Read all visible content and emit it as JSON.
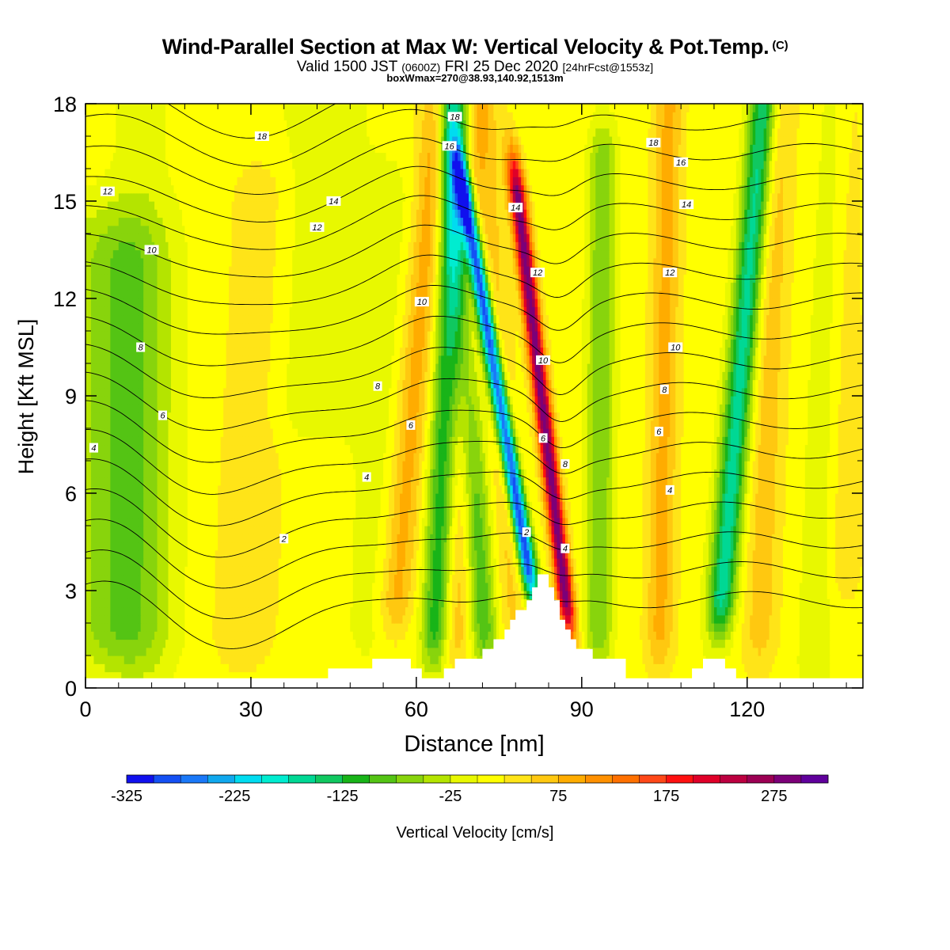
{
  "header": {
    "title": "Wind-Parallel Section at Max W: Vertical Velocity & Pot.Temp.",
    "title_mark": "(C)",
    "subtitle_a": "Valid 1500 JST",
    "subtitle_b": "(0600Z)",
    "subtitle_c": "FRI 25 Dec 2020",
    "subtitle_d": "[24hrFcst@1553z]",
    "info": "boxWmax=270@38.93,140.92,1513m"
  },
  "chart_data": {
    "type": "heatmap",
    "xlabel": "Distance [nm]",
    "ylabel": "Height [Kft MSL]",
    "xlim": [
      0,
      141
    ],
    "ylim": [
      0,
      18
    ],
    "xticks": [
      0,
      30,
      60,
      90,
      120
    ],
    "yticks": [
      0,
      3,
      6,
      9,
      12,
      15,
      18
    ],
    "colorbar": {
      "label": "Vertical Velocity [cm/s]",
      "min": -325,
      "max": 325,
      "step": 25,
      "ticks": [
        -325,
        -225,
        -125,
        -25,
        75,
        175,
        275
      ],
      "colors": [
        "#1010ee",
        "#1450f4",
        "#1a78f8",
        "#10a8ee",
        "#00dcf0",
        "#00ecd0",
        "#00d894",
        "#10c860",
        "#18b418",
        "#54c414",
        "#88d40c",
        "#b4e400",
        "#e8f800",
        "#ffff00",
        "#ffe418",
        "#ffc810",
        "#ffac00",
        "#ff9000",
        "#ff7000",
        "#ff4818",
        "#ff1010",
        "#e00028",
        "#bc0040",
        "#9c0054",
        "#7c0078",
        "#60009c"
      ]
    },
    "terrain_nm_kft": [
      [
        0,
        0.3
      ],
      [
        44,
        0.3
      ],
      [
        44,
        0.6
      ],
      [
        52,
        0.6
      ],
      [
        52,
        0.9
      ],
      [
        59,
        0.9
      ],
      [
        59,
        0.6
      ],
      [
        61,
        0.6
      ],
      [
        61,
        0.3
      ],
      [
        65,
        0.3
      ],
      [
        65,
        0.6
      ],
      [
        67,
        0.6
      ],
      [
        67,
        0.9
      ],
      [
        72,
        0.9
      ],
      [
        72,
        1.2
      ],
      [
        74,
        1.2
      ],
      [
        74,
        1.5
      ],
      [
        76,
        1.5
      ],
      [
        76,
        1.8
      ],
      [
        77,
        1.8
      ],
      [
        77,
        2.1
      ],
      [
        78,
        2.1
      ],
      [
        78,
        2.4
      ],
      [
        80,
        2.4
      ],
      [
        80,
        2.7
      ],
      [
        81,
        2.7
      ],
      [
        81,
        3.1
      ],
      [
        82,
        3.1
      ],
      [
        82,
        3.5
      ],
      [
        84,
        3.5
      ],
      [
        84,
        3.1
      ],
      [
        85,
        3.1
      ],
      [
        85,
        2.7
      ],
      [
        86,
        2.7
      ],
      [
        86,
        2.1
      ],
      [
        87,
        2.1
      ],
      [
        87,
        1.8
      ],
      [
        88,
        1.8
      ],
      [
        88,
        1.5
      ],
      [
        89,
        1.5
      ],
      [
        89,
        1.2
      ],
      [
        92,
        1.2
      ],
      [
        92,
        0.9
      ],
      [
        98,
        0.9
      ],
      [
        98,
        0.3
      ],
      [
        110,
        0.3
      ],
      [
        110,
        0.6
      ],
      [
        112,
        0.6
      ],
      [
        112,
        0.9
      ],
      [
        116,
        0.9
      ],
      [
        116,
        0.6
      ],
      [
        118,
        0.6
      ],
      [
        118,
        0.3
      ],
      [
        141,
        0.3
      ]
    ],
    "w_features": [
      {
        "x": 1.5,
        "w": 12,
        "h": [
          2,
          14
        ],
        "amp": -30,
        "tilt": 0.1
      },
      {
        "x": 10,
        "w": 6,
        "h": [
          1,
          18
        ],
        "amp": -25,
        "tilt": 0
      },
      {
        "x": 7,
        "w": 8,
        "h": [
          2,
          13
        ],
        "amp": -55,
        "tilt": 0
      },
      {
        "x": 38,
        "w": 8,
        "h": [
          9,
          18
        ],
        "amp": -35,
        "tilt": 0.3
      },
      {
        "x": 28,
        "w": 6,
        "h": [
          2,
          15
        ],
        "amp": 28,
        "tilt": 0.3
      },
      {
        "x": 52,
        "w": 6,
        "h": [
          2,
          15
        ],
        "amp": -25,
        "tilt": 0.2
      },
      {
        "x": 55,
        "w": 3,
        "h": [
          3,
          18
        ],
        "amp": 80,
        "tilt": 0.5
      },
      {
        "x": 63,
        "w": 2.5,
        "h": [
          2,
          18
        ],
        "amp": -130,
        "tilt": 0.25
      },
      {
        "x": 67,
        "w": 2.5,
        "h": [
          2,
          18
        ],
        "amp": 55,
        "tilt": 0.2
      },
      {
        "x": 73,
        "w": 2.5,
        "h": [
          2,
          18
        ],
        "amp": -110,
        "tilt": -0.4
      },
      {
        "x": 78,
        "w": 2.5,
        "h": [
          2,
          18
        ],
        "amp": 40,
        "tilt": -0.3
      },
      {
        "x": 84,
        "w": 1.5,
        "h": [
          4,
          15
        ],
        "amp": -320,
        "tilt": -1.0
      },
      {
        "x": 89,
        "w": 1.5,
        "h": [
          3,
          15
        ],
        "amp": 280,
        "tilt": -0.7
      },
      {
        "x": 93,
        "w": 2.5,
        "h": [
          2,
          16
        ],
        "amp": -90,
        "tilt": 0.05
      },
      {
        "x": 104,
        "w": 2.5,
        "h": [
          2,
          18
        ],
        "amp": 70,
        "tilt": 0.1
      },
      {
        "x": 114,
        "w": 2.5,
        "h": [
          3,
          18
        ],
        "amp": -180,
        "tilt": 0.5
      },
      {
        "x": 122,
        "w": 3,
        "h": [
          2,
          18
        ],
        "amp": 50,
        "tilt": 0.2
      },
      {
        "x": 132,
        "w": 3,
        "h": [
          1,
          18
        ],
        "amp": -40,
        "tilt": 0.2
      },
      {
        "x": 137,
        "w": 4,
        "h": [
          4,
          18
        ],
        "amp": 25,
        "tilt": 0
      }
    ],
    "theta_levels": [
      1,
      2,
      3,
      4,
      5,
      6,
      7,
      8,
      9,
      10,
      11,
      12,
      13,
      14,
      15,
      16,
      17,
      18
    ],
    "theta_labels": [
      {
        "text": "2",
        "x": 36,
        "y": 4.6
      },
      {
        "text": "4",
        "x": 1.5,
        "y": 7.4
      },
      {
        "text": "4",
        "x": 51,
        "y": 6.5
      },
      {
        "text": "6",
        "x": 14,
        "y": 8.4
      },
      {
        "text": "6",
        "x": 59,
        "y": 8.1
      },
      {
        "text": "8",
        "x": 10,
        "y": 10.5
      },
      {
        "text": "8",
        "x": 53,
        "y": 9.3
      },
      {
        "text": "10",
        "x": 12,
        "y": 13.5
      },
      {
        "text": "10",
        "x": 61,
        "y": 11.9
      },
      {
        "text": "12",
        "x": 4,
        "y": 15.3
      },
      {
        "text": "12",
        "x": 42,
        "y": 14.2
      },
      {
        "text": "14",
        "x": 45,
        "y": 15.0
      },
      {
        "text": "18",
        "x": 32,
        "y": 17.0
      },
      {
        "text": "18",
        "x": 67,
        "y": 17.6
      },
      {
        "text": "16",
        "x": 66,
        "y": 16.7
      },
      {
        "text": "14",
        "x": 78,
        "y": 14.8
      },
      {
        "text": "12",
        "x": 82,
        "y": 12.8
      },
      {
        "text": "10",
        "x": 83,
        "y": 10.1
      },
      {
        "text": "6",
        "x": 83,
        "y": 7.7
      },
      {
        "text": "2",
        "x": 80,
        "y": 4.8
      },
      {
        "text": "8",
        "x": 87,
        "y": 6.9
      },
      {
        "text": "4",
        "x": 87,
        "y": 4.3
      },
      {
        "text": "18",
        "x": 103,
        "y": 16.8
      },
      {
        "text": "16",
        "x": 108,
        "y": 16.2
      },
      {
        "text": "14",
        "x": 109,
        "y": 14.9
      },
      {
        "text": "12",
        "x": 106,
        "y": 12.8
      },
      {
        "text": "10",
        "x": 107,
        "y": 10.5
      },
      {
        "text": "8",
        "x": 105,
        "y": 9.2
      },
      {
        "text": "6",
        "x": 104,
        "y": 7.9
      },
      {
        "text": "4",
        "x": 106,
        "y": 6.1
      }
    ]
  }
}
